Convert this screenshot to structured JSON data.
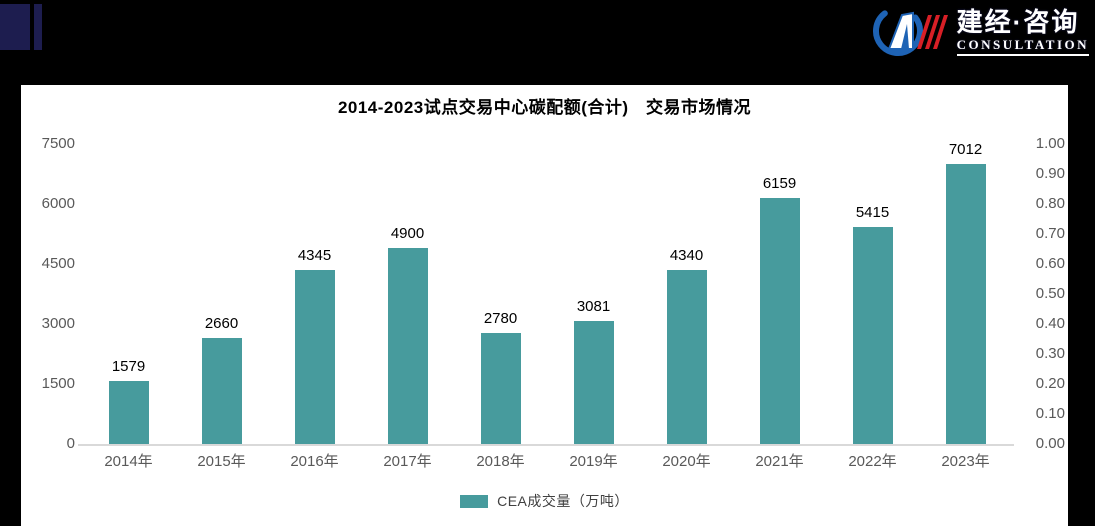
{
  "header": {
    "logo": {
      "name": "建经·咨询",
      "subtitle": "CONSULTATION"
    }
  },
  "chart_data": {
    "type": "bar",
    "title": "2014-2023试点交易中心碳配额(合计)　交易市场情况",
    "categories": [
      "2014年",
      "2015年",
      "2016年",
      "2017年",
      "2018年",
      "2019年",
      "2020年",
      "2021年",
      "2022年",
      "2023年"
    ],
    "series": [
      {
        "name": "CEA成交量（万吨）",
        "values": [
          1579,
          2660,
          4345,
          4900,
          2780,
          3081,
          4340,
          6159,
          5415,
          7012
        ]
      }
    ],
    "value_labels": [
      "1579",
      "2660",
      "4345",
      "4900",
      "2780",
      "3081",
      "4340",
      "6159",
      "5415",
      "7012"
    ],
    "left_axis": {
      "min": 0,
      "max": 7500,
      "ticks": [
        "7500",
        "6000",
        "4500",
        "3000",
        "1500",
        "0"
      ]
    },
    "right_axis": {
      "min": 0,
      "max": 1,
      "ticks": [
        "1.00",
        "0.90",
        "0.80",
        "0.70",
        "0.60",
        "0.50",
        "0.40",
        "0.30",
        "0.20",
        "0.10",
        "0.00"
      ]
    },
    "colors": {
      "bar": "#479b9d",
      "axis_text": "#595959",
      "value_label": "#000000",
      "axis_line": "#d9d9d9",
      "logo_blue": "#1e63b5",
      "logo_red": "#d81f26",
      "navy_block": "#1d1d4f"
    },
    "grid": false,
    "legend_position": "bottom"
  }
}
